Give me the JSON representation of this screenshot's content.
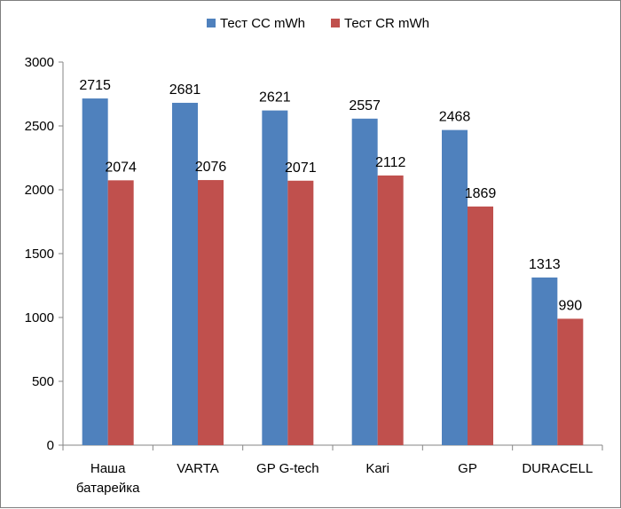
{
  "chart_data": {
    "type": "bar",
    "title": "",
    "xlabel": "",
    "ylabel": "",
    "categories": [
      [
        "Наша",
        "батарейка"
      ],
      [
        "VARTA"
      ],
      [
        "GP G-tech"
      ],
      [
        "Kari"
      ],
      [
        "GP"
      ],
      [
        "DURACELL"
      ]
    ],
    "series": [
      {
        "name": "Тест CC mWh",
        "color": "#4f81bd",
        "values": [
          2715,
          2681,
          2621,
          2557,
          2468,
          1313
        ]
      },
      {
        "name": "Тест CR mWh",
        "color": "#c0504d",
        "values": [
          2074,
          2076,
          2071,
          2112,
          1869,
          990
        ]
      }
    ],
    "ylim": [
      0,
      3000
    ],
    "yticks": [
      0,
      500,
      1000,
      1500,
      2000,
      2500,
      3000
    ],
    "legend_position": "top-center",
    "grid": false
  }
}
